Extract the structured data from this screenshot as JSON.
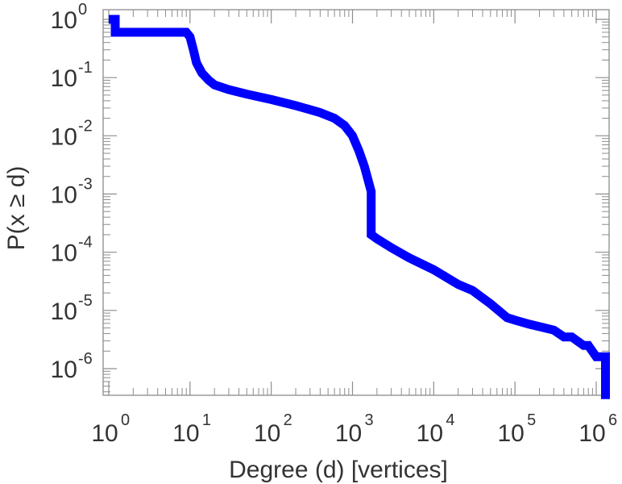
{
  "chart_data": {
    "type": "line",
    "title": "",
    "xlabel": "Degree (d) [vertices]",
    "ylabel": "P(x ≥ d)",
    "xscale": "log",
    "yscale": "log",
    "xlim": [
      1,
      1500000
    ],
    "ylim": [
      3e-07,
      1.4
    ],
    "grid": false,
    "x_ticks": [
      {
        "base": "10",
        "exp": "0",
        "value": 1
      },
      {
        "base": "10",
        "exp": "1",
        "value": 10
      },
      {
        "base": "10",
        "exp": "2",
        "value": 100
      },
      {
        "base": "10",
        "exp": "3",
        "value": 1000
      },
      {
        "base": "10",
        "exp": "4",
        "value": 10000
      },
      {
        "base": "10",
        "exp": "5",
        "value": 100000
      },
      {
        "base": "10",
        "exp": "6",
        "value": 1000000
      }
    ],
    "y_ticks": [
      {
        "base": "10",
        "exp": "0",
        "value": 1
      },
      {
        "base": "10",
        "exp": "-1",
        "value": 0.1
      },
      {
        "base": "10",
        "exp": "-2",
        "value": 0.01
      },
      {
        "base": "10",
        "exp": "-3",
        "value": 0.001
      },
      {
        "base": "10",
        "exp": "-4",
        "value": 0.0001
      },
      {
        "base": "10",
        "exp": "-5",
        "value": 1e-05
      },
      {
        "base": "10",
        "exp": "-6",
        "value": 1e-06
      }
    ],
    "series": [
      {
        "color": "#0000ff",
        "x": [
          1,
          1.2,
          1.2,
          5,
          9,
          10,
          11,
          12,
          14,
          17,
          20,
          30,
          50,
          100,
          200,
          400,
          600,
          800,
          1000,
          1200,
          1400,
          1600,
          1700,
          1700,
          2000,
          3000,
          5000,
          10000,
          20000,
          30000,
          50000,
          80000,
          100000,
          150000,
          300000,
          400000,
          500000,
          700000,
          800000,
          1000000,
          1300000,
          1300000
        ],
        "y": [
          1.0,
          1.0,
          0.6,
          0.6,
          0.6,
          0.5,
          0.3,
          0.18,
          0.12,
          0.09,
          0.075,
          0.062,
          0.052,
          0.042,
          0.033,
          0.025,
          0.02,
          0.015,
          0.01,
          0.0055,
          0.003,
          0.0015,
          0.0011,
          0.0002,
          0.00017,
          0.00012,
          8e-05,
          5e-05,
          2.8e-05,
          2.2e-05,
          1.3e-05,
          7.5e-06,
          6.8e-06,
          5.8e-06,
          4.6e-06,
          3.5e-06,
          3.5e-06,
          2.5e-06,
          2.5e-06,
          1.6e-06,
          1.6e-06,
          3e-07
        ]
      }
    ]
  }
}
